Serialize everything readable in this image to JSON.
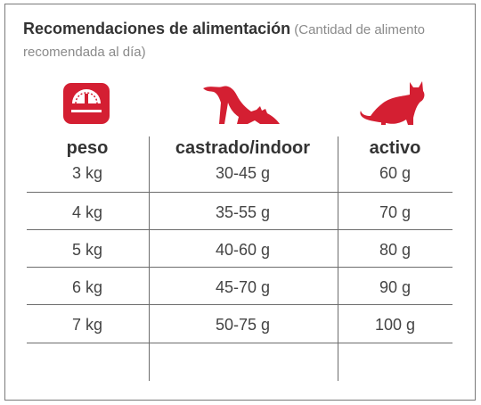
{
  "title": {
    "bold": "Recomendaciones de alimentación",
    "note": "(Cantidad de alimento recomendada al día)"
  },
  "colors": {
    "accent": "#d41f32",
    "text": "#333333",
    "note": "#8a8a8a",
    "lines": "#6d6d6d"
  },
  "icons": {
    "weight": "scale-icon",
    "castrado": "stretching-cat-icon",
    "activo": "sitting-cat-icon"
  },
  "columns": [
    "peso",
    "castrado/indoor",
    "activo"
  ],
  "rows": [
    [
      "3 kg",
      "30-45 g",
      "60 g"
    ],
    [
      "4 kg",
      "35-55 g",
      "70 g"
    ],
    [
      "5 kg",
      "40-60 g",
      "80 g"
    ],
    [
      "6 kg",
      "45-70 g",
      "90 g"
    ],
    [
      "7 kg",
      "50-75 g",
      "100 g"
    ]
  ]
}
